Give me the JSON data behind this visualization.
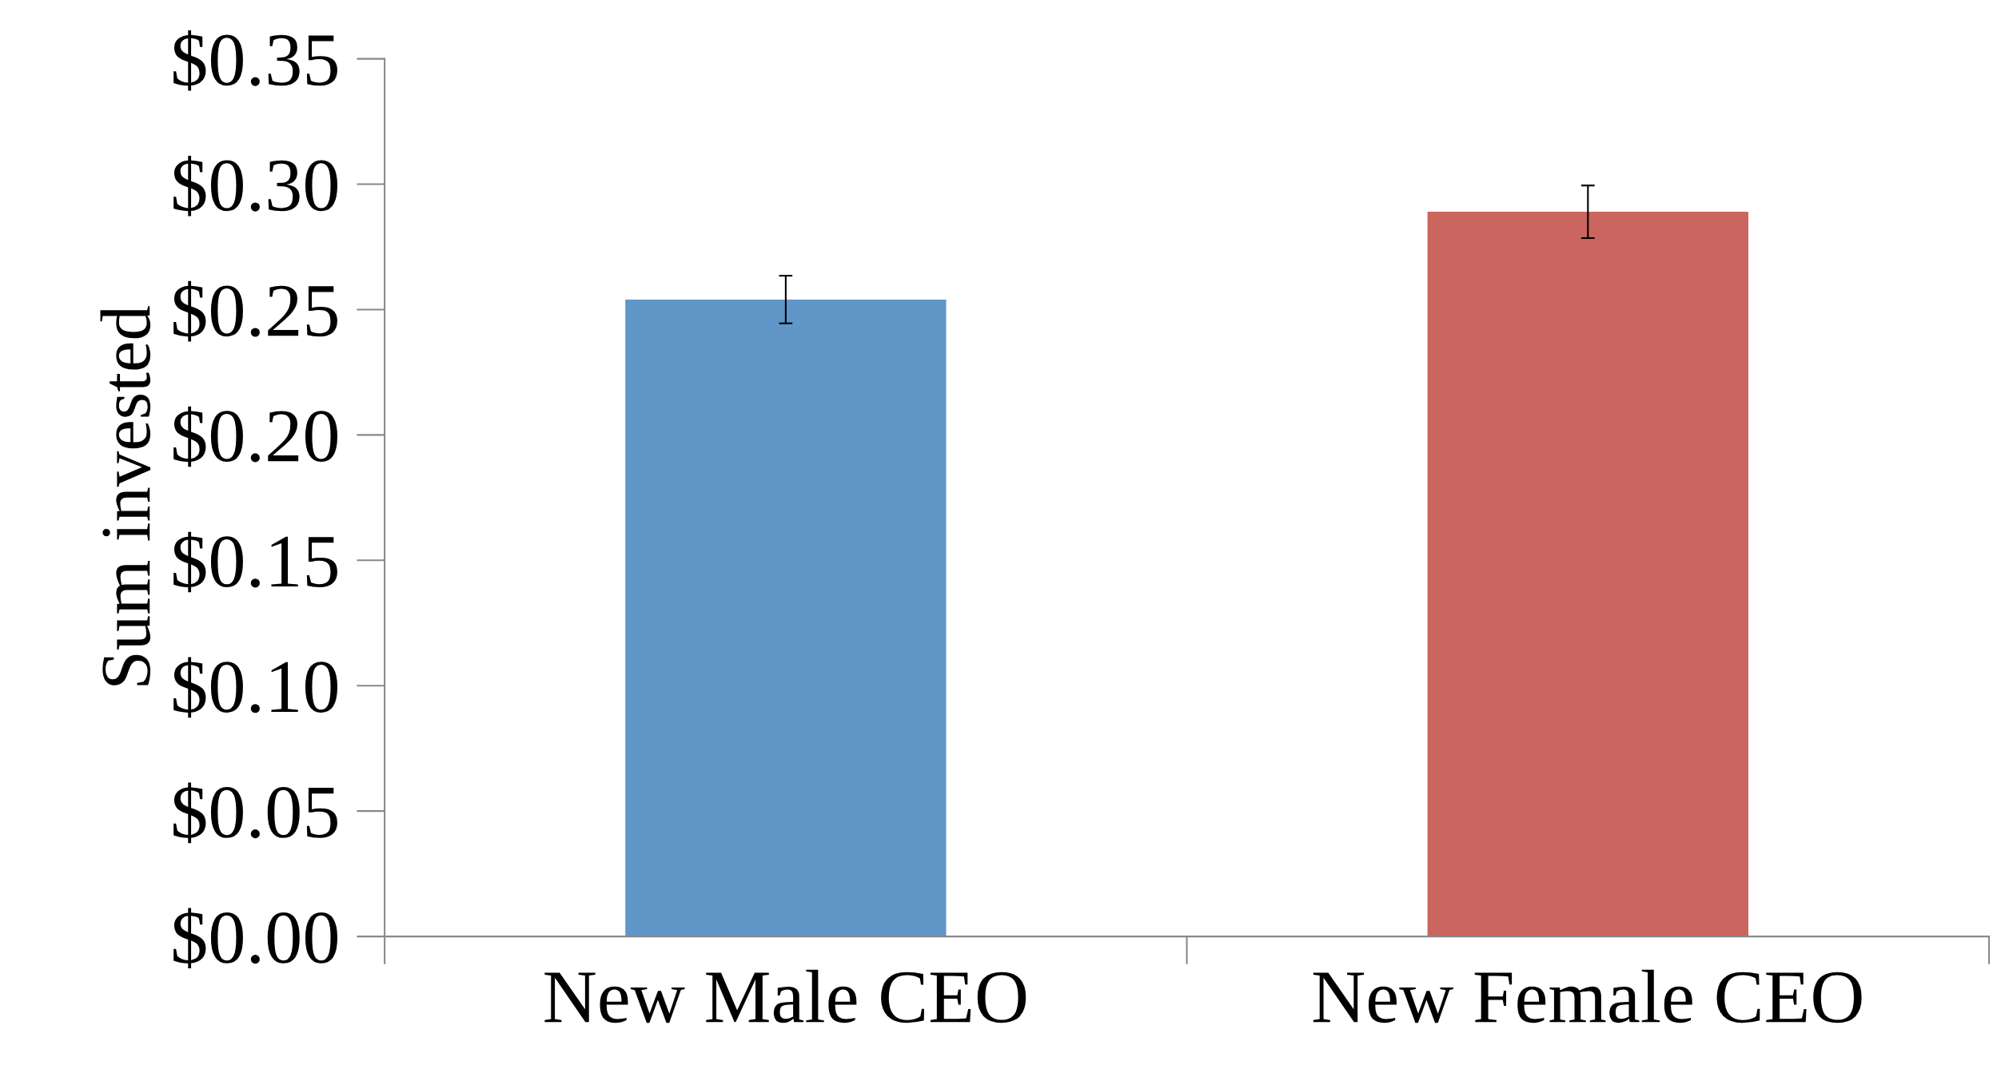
{
  "chart_data": {
    "type": "bar",
    "ylabel": "Sum invested",
    "categories": [
      "New Male CEO",
      "New Female CEO"
    ],
    "values": [
      0.254,
      0.289
    ],
    "colors": [
      "#6096c8",
      "#cb655f"
    ],
    "errors": [
      0.0095,
      0.0105
    ],
    "ylim": [
      0,
      0.35
    ],
    "yticks": [
      {
        "value": 0,
        "label": "$0.00"
      },
      {
        "value": 0.05,
        "label": "$0.05"
      },
      {
        "value": 0.1,
        "label": "$0.10"
      },
      {
        "value": 0.15,
        "label": "$0.15"
      },
      {
        "value": 0.2,
        "label": "$0.20"
      },
      {
        "value": 0.25,
        "label": "$0.25"
      },
      {
        "value": 0.3,
        "label": "$0.30"
      },
      {
        "value": 0.35,
        "label": "$0.35"
      }
    ],
    "grid": false,
    "legend": false
  }
}
